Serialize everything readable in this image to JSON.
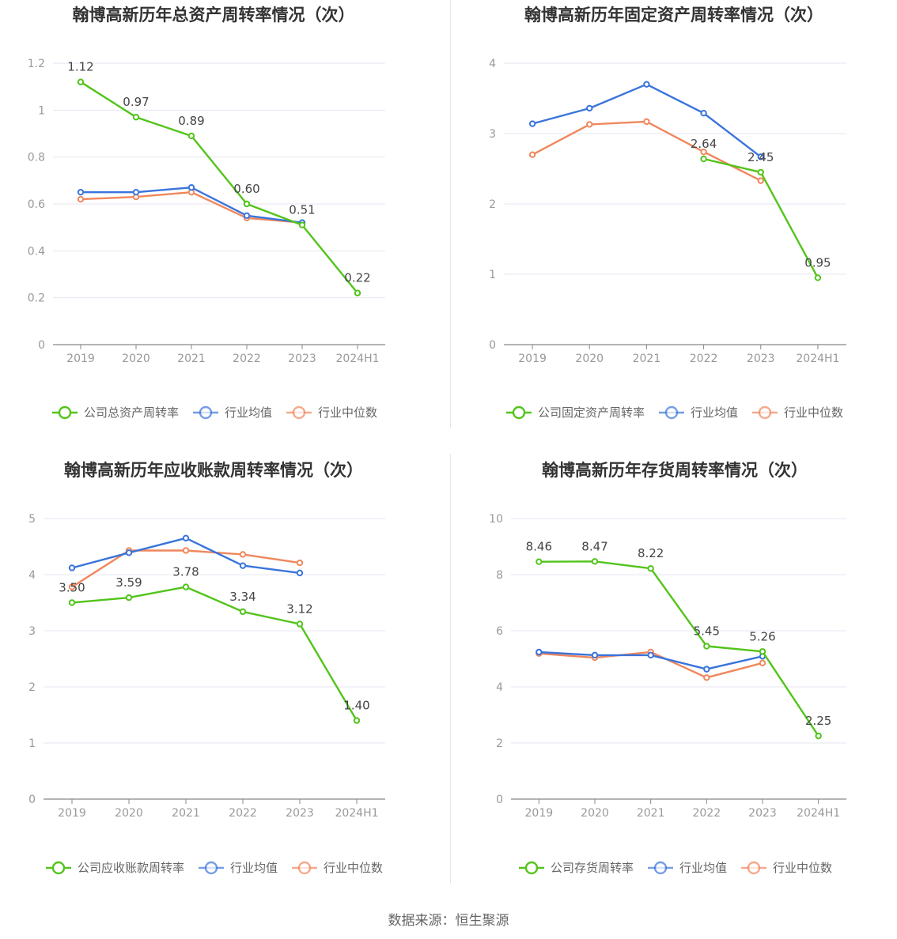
{
  "source_label": "数据来源：恒生聚源",
  "colors": {
    "company": "#52c41a",
    "average": "#3a74db",
    "median": "#f0875c",
    "grid": "#e6e6f0",
    "axis": "#999999",
    "title": "#333333",
    "legend_text": "#666666"
  },
  "chart_data": [
    {
      "type": "line",
      "title": "翰博高新历年总资产周转率情况（次）",
      "categories": [
        "2019",
        "2020",
        "2021",
        "2022",
        "2023",
        "2024H1"
      ],
      "ylim": [
        0,
        1.2
      ],
      "yticks": [
        "0",
        "0.2",
        "0.4",
        "0.6",
        "0.8",
        "1",
        "1.2"
      ],
      "ytick_values": [
        0,
        0.2,
        0.4,
        0.6,
        0.8,
        1.0,
        1.2
      ],
      "series": [
        {
          "name": "公司总资产周转率",
          "color": "#52c41a",
          "values": [
            1.12,
            0.97,
            0.89,
            0.6,
            0.51,
            0.22
          ],
          "labels": [
            "1.12",
            "0.97",
            "0.89",
            "0.60",
            "0.51",
            "0.22"
          ]
        },
        {
          "name": "行业均值",
          "color": "#3a74db",
          "values": [
            0.65,
            0.65,
            0.67,
            0.55,
            0.52,
            null
          ]
        },
        {
          "name": "行业中位数",
          "color": "#f0875c",
          "values": [
            0.62,
            0.63,
            0.65,
            0.54,
            0.52,
            null
          ]
        }
      ],
      "legend": [
        "公司总资产周转率",
        "行业均值",
        "行业中位数"
      ],
      "legend_position": "bottom"
    },
    {
      "type": "line",
      "title": "翰博高新历年固定资产周转率情况（次）",
      "categories": [
        "2019",
        "2020",
        "2021",
        "2022",
        "2023",
        "2024H1"
      ],
      "ylim": [
        0,
        4
      ],
      "yticks": [
        "0",
        "1",
        "2",
        "3",
        "4"
      ],
      "ytick_values": [
        0,
        1,
        2,
        3,
        4
      ],
      "series": [
        {
          "name": "公司固定资产周转率",
          "color": "#52c41a",
          "values": [
            null,
            null,
            null,
            2.64,
            2.45,
            0.95
          ],
          "labels": [
            null,
            null,
            null,
            "2.64",
            "2.45",
            "0.95"
          ]
        },
        {
          "name": "行业均值",
          "color": "#3a74db",
          "values": [
            3.14,
            3.36,
            3.7,
            3.29,
            2.67,
            null
          ]
        },
        {
          "name": "行业中位数",
          "color": "#f0875c",
          "values": [
            2.7,
            3.13,
            3.17,
            2.74,
            2.33,
            null
          ]
        }
      ],
      "legend": [
        "公司固定资产周转率",
        "行业均值",
        "行业中位数"
      ],
      "legend_position": "bottom"
    },
    {
      "type": "line",
      "title": "翰博高新历年应收账款周转率情况（次）",
      "categories": [
        "2019",
        "2020",
        "2021",
        "2022",
        "2023",
        "2024H1"
      ],
      "ylim": [
        0,
        5
      ],
      "yticks": [
        "0",
        "1",
        "2",
        "3",
        "4",
        "5"
      ],
      "ytick_values": [
        0,
        1,
        2,
        3,
        4,
        5
      ],
      "series": [
        {
          "name": "公司应收账款周转率",
          "color": "#52c41a",
          "values": [
            3.5,
            3.59,
            3.78,
            3.34,
            3.12,
            1.4
          ],
          "labels": [
            "3.50",
            "3.59",
            "3.78",
            "3.34",
            "3.12",
            "1.40"
          ]
        },
        {
          "name": "行业均值",
          "color": "#3a74db",
          "values": [
            4.12,
            4.39,
            4.65,
            4.16,
            4.03,
            null
          ]
        },
        {
          "name": "行业中位数",
          "color": "#f0875c",
          "values": [
            3.78,
            4.43,
            4.43,
            4.36,
            4.21,
            null
          ]
        }
      ],
      "legend": [
        "公司应收账款周转率",
        "行业均值",
        "行业中位数"
      ],
      "legend_position": "bottom"
    },
    {
      "type": "line",
      "title": "翰博高新历年存货周转率情况（次）",
      "categories": [
        "2019",
        "2020",
        "2021",
        "2022",
        "2023",
        "2024H1"
      ],
      "ylim": [
        0,
        10
      ],
      "yticks": [
        "0",
        "2",
        "4",
        "6",
        "8",
        "10"
      ],
      "ytick_values": [
        0,
        2,
        4,
        6,
        8,
        10
      ],
      "series": [
        {
          "name": "公司存货周转率",
          "color": "#52c41a",
          "values": [
            8.46,
            8.47,
            8.22,
            5.45,
            5.26,
            2.25
          ],
          "labels": [
            "8.46",
            "8.47",
            "8.22",
            "5.45",
            "5.26",
            "2.25"
          ]
        },
        {
          "name": "行业均值",
          "color": "#3a74db",
          "values": [
            5.24,
            5.13,
            5.13,
            4.63,
            5.09,
            null
          ]
        },
        {
          "name": "行业中位数",
          "color": "#f0875c",
          "values": [
            5.19,
            5.04,
            5.24,
            4.33,
            4.85,
            null
          ]
        }
      ],
      "legend": [
        "公司存货周转率",
        "行业均值",
        "行业中位数"
      ],
      "legend_position": "bottom"
    }
  ]
}
